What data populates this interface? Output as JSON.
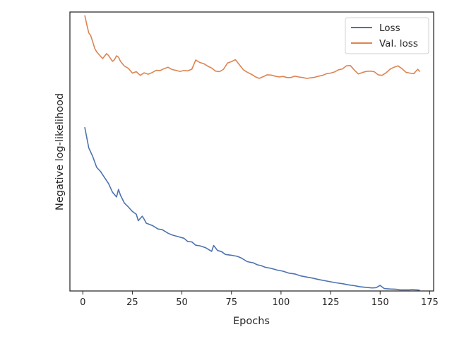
{
  "chart_data": {
    "type": "line",
    "title": "",
    "xlabel": "Epochs",
    "ylabel": "Negative log-likelihood",
    "xlim": [
      -6.5,
      177
    ],
    "ylim": [
      0.0,
      1.0
    ],
    "y_tick_labels_shown": false,
    "grid": false,
    "legend_position": "top-right",
    "x_ticks": [
      0,
      25,
      50,
      75,
      100,
      125,
      150,
      175
    ],
    "x_tick_labels": [
      "0",
      "25",
      "50",
      "75",
      100,
      "125",
      "150",
      "175"
    ],
    "series": [
      {
        "name": "Loss",
        "color": "#4c72b0",
        "x": [
          1,
          3,
          5,
          7,
          9,
          11,
          13,
          15,
          17,
          18,
          19,
          21,
          23,
          25,
          27,
          28,
          30,
          31,
          32,
          35,
          38,
          40,
          43,
          45,
          48,
          51,
          53,
          55,
          57,
          59,
          62,
          65,
          66,
          68,
          70,
          72,
          75,
          78,
          80,
          83,
          86,
          88,
          90,
          92,
          95,
          98,
          101,
          104,
          107,
          110,
          113,
          116,
          119,
          122,
          125,
          128,
          131,
          134,
          137,
          140,
          143,
          146,
          148,
          150,
          152,
          153,
          155,
          158,
          160,
          163,
          165,
          166,
          168,
          170
        ],
        "y": [
          0.587,
          0.513,
          0.482,
          0.443,
          0.428,
          0.406,
          0.385,
          0.354,
          0.337,
          0.364,
          0.343,
          0.315,
          0.301,
          0.285,
          0.275,
          0.252,
          0.268,
          0.257,
          0.243,
          0.235,
          0.222,
          0.22,
          0.207,
          0.201,
          0.195,
          0.189,
          0.177,
          0.176,
          0.164,
          0.162,
          0.155,
          0.142,
          0.163,
          0.145,
          0.141,
          0.131,
          0.128,
          0.124,
          0.118,
          0.105,
          0.101,
          0.094,
          0.091,
          0.085,
          0.081,
          0.075,
          0.071,
          0.064,
          0.061,
          0.054,
          0.05,
          0.046,
          0.041,
          0.037,
          0.033,
          0.029,
          0.026,
          0.022,
          0.019,
          0.015,
          0.013,
          0.011,
          0.012,
          0.02,
          0.009,
          0.008,
          0.007,
          0.006,
          0.004,
          0.004,
          0.004,
          0.005,
          0.004,
          0.003
        ]
      },
      {
        "name": "Val. loss",
        "color": "#dd8452",
        "x": [
          1,
          2,
          3,
          4,
          5,
          6,
          7,
          8,
          10,
          12,
          13,
          15,
          16,
          17,
          18,
          19,
          21,
          23,
          25,
          27,
          29,
          31,
          33,
          35,
          37,
          39,
          41,
          43,
          45,
          47,
          49,
          51,
          53,
          55,
          57,
          59,
          61,
          63,
          65,
          67,
          69,
          71,
          73,
          75,
          77,
          79,
          81,
          83,
          85,
          87,
          89,
          91,
          93,
          95,
          97,
          99,
          101,
          103,
          105,
          107,
          109,
          111,
          113,
          115,
          117,
          119,
          121,
          123,
          125,
          127,
          129,
          131,
          133,
          135,
          137,
          139,
          141,
          143,
          145,
          147,
          149,
          151,
          153,
          155,
          157,
          159,
          161,
          163,
          165,
          167,
          168,
          169,
          170
        ],
        "y": [
          0.988,
          0.955,
          0.925,
          0.915,
          0.893,
          0.87,
          0.857,
          0.849,
          0.833,
          0.851,
          0.844,
          0.823,
          0.829,
          0.843,
          0.838,
          0.823,
          0.806,
          0.798,
          0.781,
          0.786,
          0.773,
          0.782,
          0.777,
          0.783,
          0.791,
          0.79,
          0.797,
          0.802,
          0.794,
          0.791,
          0.787,
          0.79,
          0.789,
          0.795,
          0.828,
          0.819,
          0.815,
          0.806,
          0.799,
          0.788,
          0.786,
          0.795,
          0.817,
          0.822,
          0.829,
          0.811,
          0.793,
          0.784,
          0.777,
          0.768,
          0.762,
          0.768,
          0.775,
          0.774,
          0.77,
          0.767,
          0.769,
          0.765,
          0.765,
          0.77,
          0.767,
          0.765,
          0.762,
          0.764,
          0.766,
          0.77,
          0.773,
          0.779,
          0.781,
          0.785,
          0.793,
          0.796,
          0.807,
          0.808,
          0.792,
          0.778,
          0.783,
          0.787,
          0.788,
          0.786,
          0.775,
          0.773,
          0.782,
          0.795,
          0.802,
          0.807,
          0.797,
          0.784,
          0.781,
          0.779,
          0.787,
          0.795,
          0.786
        ]
      }
    ]
  }
}
